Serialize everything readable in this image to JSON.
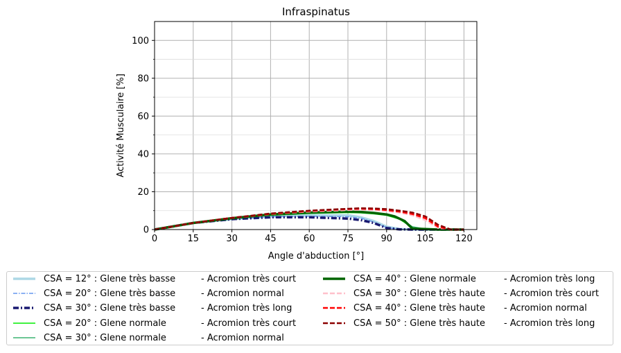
{
  "chart_data": {
    "type": "line",
    "title": "Infraspinatus",
    "xlabel": "Angle d'abduction [°]",
    "ylabel": "Activité Musculaire [%]",
    "xlim": [
      0,
      125
    ],
    "ylim": [
      0,
      110
    ],
    "xticks": [
      0,
      15,
      30,
      45,
      60,
      75,
      90,
      105,
      120
    ],
    "yticks": [
      0,
      20,
      40,
      60,
      80,
      100
    ],
    "grid": true,
    "legend_position": "below",
    "series": [
      {
        "name": "CSA = 12° : Glene très basse",
        "suffix": "-  Acromion très court",
        "color": "#add8e6",
        "dash": "",
        "width": 3.5,
        "x": [
          0,
          15,
          30,
          45,
          60,
          75,
          80,
          85,
          90,
          95,
          100,
          110,
          120
        ],
        "y": [
          0,
          3.5,
          5.5,
          7.0,
          7.5,
          7.5,
          6.5,
          4.5,
          1.5,
          0.3,
          0,
          0,
          0
        ]
      },
      {
        "name": "CSA = 20° : Glene très basse",
        "suffix": "-  Acromion normal",
        "color": "#6495ed",
        "dash": "6,2,1.5,2",
        "width": 1.5,
        "x": [
          0,
          15,
          30,
          45,
          60,
          75,
          80,
          85,
          90,
          95,
          100,
          110,
          120
        ],
        "y": [
          0,
          3.5,
          5.5,
          6.8,
          7.0,
          6.8,
          6.0,
          4.0,
          1.0,
          0.2,
          0,
          0,
          0
        ]
      },
      {
        "name": "CSA = 30° : Glene très basse",
        "suffix": "-  Acromion très long",
        "color": "#191970",
        "dash": "8,3,2,3",
        "width": 3.5,
        "x": [
          0,
          15,
          30,
          45,
          60,
          75,
          80,
          85,
          90,
          95,
          100,
          110,
          120
        ],
        "y": [
          0,
          3.5,
          5.5,
          6.5,
          6.5,
          5.8,
          5.0,
          3.5,
          0.8,
          0.1,
          0,
          0,
          0
        ]
      },
      {
        "name": "CSA = 20° : Glene normale",
        "suffix": "-  Acromion très court",
        "color": "#00ee00",
        "dash": "",
        "width": 1.5,
        "x": [
          0,
          15,
          30,
          45,
          60,
          75,
          80,
          85,
          90,
          95,
          100,
          105,
          110,
          120
        ],
        "y": [
          0,
          3.5,
          6.0,
          7.5,
          8.5,
          9.0,
          8.8,
          8.3,
          7.5,
          5.5,
          1.0,
          0.2,
          0,
          0
        ]
      },
      {
        "name": "CSA = 30° : Glene normale",
        "suffix": "-  Acromion normal",
        "color": "#3cb371",
        "dash": "",
        "width": 1.5,
        "x": [
          0,
          15,
          30,
          45,
          60,
          75,
          80,
          85,
          90,
          95,
          100,
          105,
          110,
          120
        ],
        "y": [
          0,
          3.5,
          6.0,
          7.8,
          8.8,
          9.2,
          9.0,
          8.5,
          7.8,
          6.0,
          1.5,
          0.3,
          0,
          0
        ]
      },
      {
        "name": "CSA = 40° : Glene normale",
        "suffix": "-  Acromion très long",
        "color": "#006400",
        "dash": "",
        "width": 3.5,
        "x": [
          0,
          15,
          30,
          45,
          60,
          75,
          80,
          85,
          90,
          93,
          97,
          100,
          105,
          110,
          120
        ],
        "y": [
          0,
          3.5,
          6.0,
          8.0,
          9.0,
          9.5,
          9.3,
          8.8,
          8.0,
          7.0,
          4.5,
          0.5,
          0.3,
          0,
          0
        ]
      },
      {
        "name": "CSA = 30° : Glene très haute",
        "suffix": "-  Acromion très court",
        "color": "#ffc0cb",
        "dash": "7,3",
        "width": 2.5,
        "x": [
          0,
          15,
          30,
          45,
          60,
          75,
          80,
          85,
          90,
          95,
          100,
          105,
          110,
          115,
          120
        ],
        "y": [
          0,
          3.5,
          6.2,
          8.2,
          9.5,
          10.3,
          10.5,
          10.3,
          9.8,
          9.0,
          7.5,
          5.0,
          0.8,
          0,
          0
        ]
      },
      {
        "name": "CSA = 40° : Glene très haute",
        "suffix": "-  Acromion normal",
        "color": "#ff0000",
        "dash": "7,3",
        "width": 2.5,
        "x": [
          0,
          15,
          30,
          45,
          60,
          75,
          80,
          85,
          90,
          95,
          100,
          105,
          110,
          115,
          120
        ],
        "y": [
          0,
          3.5,
          6.2,
          8.3,
          9.8,
          10.8,
          11.0,
          10.8,
          10.3,
          9.5,
          8.2,
          6.0,
          1.5,
          0,
          0
        ]
      },
      {
        "name": "CSA = 50° : Glene très haute",
        "suffix": "-  Acromion très long",
        "color": "#8b0000",
        "dash": "7,3",
        "width": 2.5,
        "x": [
          0,
          15,
          30,
          45,
          60,
          75,
          80,
          85,
          90,
          95,
          100,
          105,
          110,
          115,
          120
        ],
        "y": [
          0,
          3.5,
          6.2,
          8.5,
          10.0,
          11.0,
          11.3,
          11.2,
          10.8,
          10.0,
          9.0,
          7.0,
          2.5,
          0,
          0
        ]
      }
    ]
  }
}
